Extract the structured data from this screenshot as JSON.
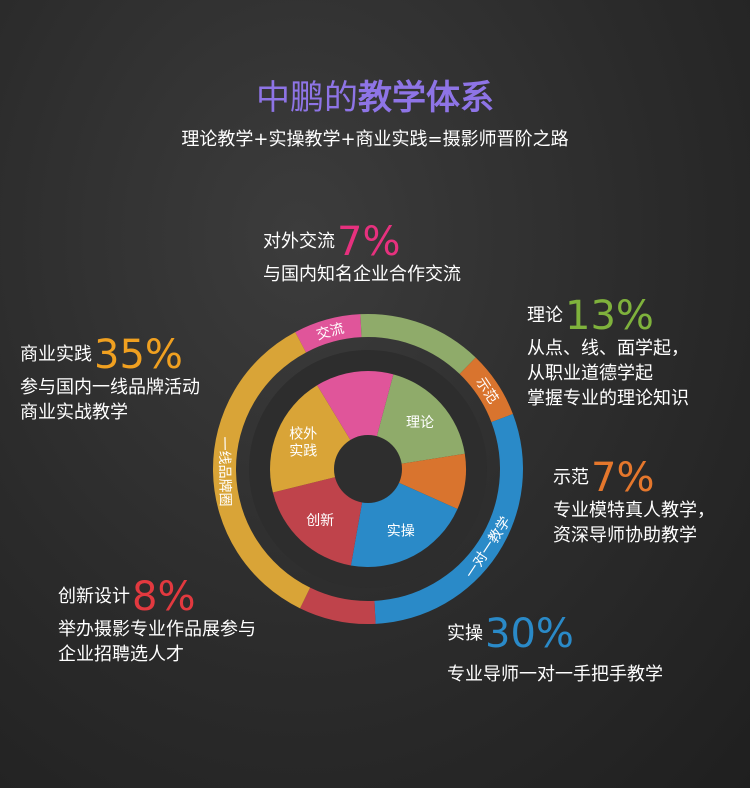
{
  "header": {
    "title_prefix": "中鹏的",
    "title_bold": "教学体系",
    "subtitle": "理论教学+实操教学+商业实践=摄影师晋阶之路"
  },
  "colors": {
    "title": "#8e74e6",
    "exchange": "#e0559a",
    "theory": "#8fab6a",
    "demo": "#d9742e",
    "practice": "#2a8ac8",
    "innovation": "#bf434b",
    "commercial": "#d9a437",
    "outer_exchange": "#e0559a",
    "outer_theory": "#8fab6a"
  },
  "chart_data": {
    "type": "donut",
    "outer_ring": {
      "segments": [
        {
          "label": "交流",
          "value": 7,
          "color": "#e0559a"
        },
        {
          "label": "",
          "value": 13,
          "color": "#8fab6a"
        },
        {
          "label": "示范",
          "value": 7,
          "color": "#d9742e"
        },
        {
          "label": "一对一教学",
          "value": 30,
          "color": "#2a8ac8"
        },
        {
          "label": "",
          "value": 8,
          "color": "#bf434b"
        },
        {
          "label": "一线品牌圈",
          "value": 35,
          "color": "#d9a437"
        }
      ]
    },
    "inner_ring": {
      "segments": [
        {
          "label": "理论",
          "value": 20,
          "color": "#8fab6a"
        },
        {
          "label": "",
          "value": 10,
          "color": "#d9742e"
        },
        {
          "label": "实操",
          "value": 23,
          "color": "#2a8ac8"
        },
        {
          "label": "创新",
          "value": 20,
          "color": "#bf434b"
        },
        {
          "label": "校外\n实践",
          "value": 22,
          "color": "#d9a437"
        },
        {
          "label": "",
          "value": 14,
          "color": "#e0559a"
        }
      ]
    }
  },
  "callouts": {
    "exchange": {
      "name": "对外交流",
      "percent": "7%",
      "desc": [
        "与国内知名企业合作交流"
      ],
      "color": "#e6317e"
    },
    "theory": {
      "name": "理论",
      "percent": "13%",
      "desc": [
        "从点、线、面学起，",
        "从职业道德学起",
        "掌握专业的理论知识"
      ],
      "color": "#7fb23c"
    },
    "demo": {
      "name": "示范",
      "percent": "7%",
      "desc": [
        "专业模特真人教学，",
        "资深导师协助教学"
      ],
      "color": "#e5772c"
    },
    "practice": {
      "name": "实操",
      "percent": "30%",
      "desc": [
        "专业导师一对一手把手教学"
      ],
      "color": "#2a8ac8"
    },
    "innovation": {
      "name": "创新设计",
      "percent": "8%",
      "desc": [
        "举办摄影专业作品展参与",
        "企业招聘选人才"
      ],
      "color": "#e2393f"
    },
    "commercial": {
      "name": "商业实践",
      "percent": "35%",
      "desc": [
        "参与国内一线品牌活动",
        "商业实战教学"
      ],
      "color": "#f0a020"
    }
  }
}
